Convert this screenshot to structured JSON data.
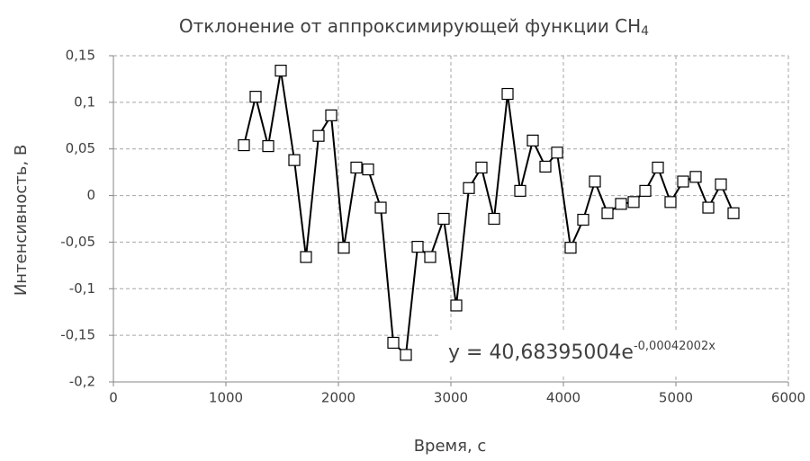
{
  "chart_data": {
    "type": "line",
    "title": "Отклонение от аппроксимирующей функции CH",
    "title_subscript": "4",
    "x_label": "Время, с",
    "y_label": "Интенсивность, В",
    "annotation": {
      "text": "y = 40,68395004e",
      "superscript": "-0,00042002x"
    },
    "x": [
      1160,
      1264,
      1376,
      1488,
      1608,
      1712,
      1824,
      1936,
      2048,
      2160,
      2264,
      2376,
      2488,
      2600,
      2704,
      2816,
      2936,
      3048,
      3160,
      3272,
      3384,
      3504,
      3616,
      3728,
      3840,
      3944,
      4064,
      4176,
      4280,
      4392,
      4512,
      4624,
      4728,
      4840,
      4952,
      5064,
      5176,
      5288,
      5400,
      5512
    ],
    "series": [
      {
        "color": "#000000",
        "values": [
          0.054,
          0.106,
          0.053,
          0.134,
          0.038,
          -0.066,
          0.064,
          0.086,
          -0.056,
          0.03,
          0.028,
          -0.013,
          -0.158,
          -0.171,
          -0.055,
          -0.066,
          -0.025,
          -0.118,
          0.008,
          0.03,
          -0.025,
          0.109,
          0.005,
          0.059,
          0.031,
          0.046,
          -0.056,
          -0.026,
          0.015,
          -0.019,
          -0.009,
          -0.007,
          0.005,
          0.03,
          -0.007,
          0.015,
          0.02,
          -0.013,
          0.012,
          -0.019
        ]
      }
    ],
    "xlim": [
      0,
      6000
    ],
    "xticks": [
      0,
      1000,
      2000,
      3000,
      4000,
      5000,
      6000
    ],
    "ylim": [
      -0.2,
      0.15
    ],
    "yticks": [
      {
        "value": -0.2,
        "label": "-0,2"
      },
      {
        "value": -0.15,
        "label": "-0,15"
      },
      {
        "value": -0.1,
        "label": "-0,1"
      },
      {
        "value": -0.05,
        "label": "-0,05"
      },
      0,
      {
        "value": 0.05,
        "label": "0,05"
      },
      {
        "value": 0.1,
        "label": "0,1"
      },
      {
        "value": 0.15,
        "label": "0,15"
      }
    ],
    "grid": true,
    "marker": "square"
  }
}
